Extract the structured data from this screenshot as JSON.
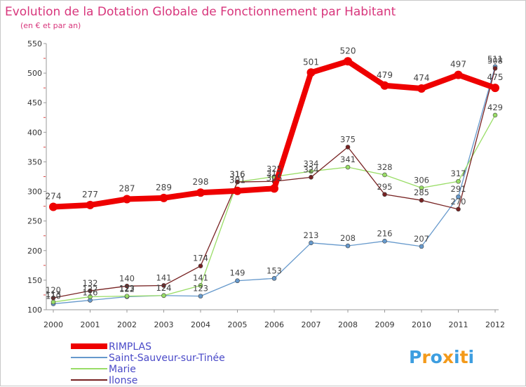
{
  "chart_data": {
    "type": "line",
    "title": "Evolution de la Dotation Globale de Fonctionnement par Habitant",
    "subtitle": "(en € et par an)",
    "xlabel": "",
    "ylabel": "",
    "categories": [
      "2000",
      "2001",
      "2002",
      "2003",
      "2004",
      "2005",
      "2006",
      "2007",
      "2008",
      "2009",
      "2010",
      "2011",
      "2012"
    ],
    "ylim": [
      100,
      550
    ],
    "yticks": [
      100,
      150,
      200,
      250,
      300,
      350,
      400,
      450,
      500,
      550
    ],
    "grid": false,
    "legend_position": "bottom-left",
    "series": [
      {
        "name": "RIMPLAS",
        "color": "#ee0000",
        "values": [
          274,
          277,
          287,
          289,
          298,
          301,
          305,
          501,
          520,
          479,
          474,
          497,
          475
        ]
      },
      {
        "name": "Saint-Sauveur-sur-Tinée",
        "color": "#6699cc",
        "values": [
          110,
          116,
          122,
          124,
          123,
          149,
          153,
          213,
          208,
          216,
          207,
          291,
          511
        ]
      },
      {
        "name": "Marie",
        "color": "#99dd66",
        "values": [
          113,
          122,
          123,
          124,
          141,
          316,
          325,
          334,
          341,
          328,
          306,
          317,
          429
        ]
      },
      {
        "name": "Ilonse",
        "color": "#772222",
        "values": [
          120,
          132,
          140,
          141,
          174,
          316,
          317,
          324,
          375,
          295,
          285,
          270,
          508
        ]
      }
    ]
  },
  "logo": {
    "letters": [
      "P",
      "r",
      "o",
      "x",
      "i",
      "t",
      "i"
    ],
    "colors": [
      "#3d9ee0",
      "#f39a1b",
      "#3d9ee0",
      "#f39a1b",
      "#3d9ee0",
      "#f39a1b",
      "#3d9ee0"
    ]
  }
}
